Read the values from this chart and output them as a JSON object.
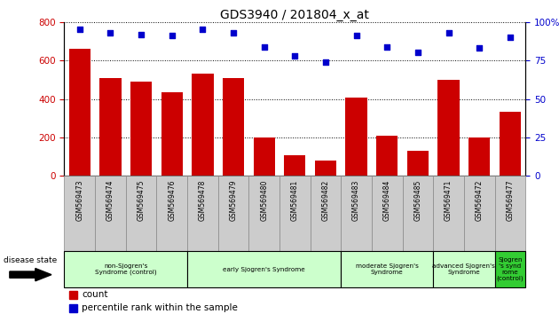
{
  "title": "GDS3940 / 201804_x_at",
  "samples": [
    "GSM569473",
    "GSM569474",
    "GSM569475",
    "GSM569476",
    "GSM569478",
    "GSM569479",
    "GSM569480",
    "GSM569481",
    "GSM569482",
    "GSM569483",
    "GSM569484",
    "GSM569485",
    "GSM569471",
    "GSM569472",
    "GSM569477"
  ],
  "counts": [
    660,
    510,
    490,
    435,
    530,
    510,
    200,
    105,
    80,
    405,
    210,
    130,
    500,
    200,
    335
  ],
  "percentile": [
    95,
    93,
    92,
    91,
    95,
    93,
    84,
    78,
    74,
    91,
    84,
    80,
    93,
    83,
    90
  ],
  "bar_color": "#cc0000",
  "dot_color": "#0000cc",
  "ylim_left": [
    0,
    800
  ],
  "ylim_right": [
    0,
    100
  ],
  "yticks_left": [
    0,
    200,
    400,
    600,
    800
  ],
  "yticks_right": [
    0,
    25,
    50,
    75,
    100
  ],
  "groups": [
    {
      "label": "non-Sjogren's\nSyndrome (control)",
      "start": 0,
      "end": 4,
      "color": "#ccffcc"
    },
    {
      "label": "early Sjogren's Syndrome",
      "start": 4,
      "end": 9,
      "color": "#ccffcc"
    },
    {
      "label": "moderate Sjogren's\nSyndrome",
      "start": 9,
      "end": 12,
      "color": "#ccffcc"
    },
    {
      "label": "advanced Sjogren's\nSyndrome",
      "start": 12,
      "end": 14,
      "color": "#ccffcc"
    },
    {
      "label": "Sjogren\n's synd\nrome\n(control)",
      "start": 14,
      "end": 15,
      "color": "#33cc33"
    }
  ],
  "legend_items": [
    {
      "label": "count",
      "color": "#cc0000"
    },
    {
      "label": "percentile rank within the sample",
      "color": "#0000cc"
    }
  ],
  "bg_color": "#ffffff",
  "tick_area_color": "#cccccc"
}
